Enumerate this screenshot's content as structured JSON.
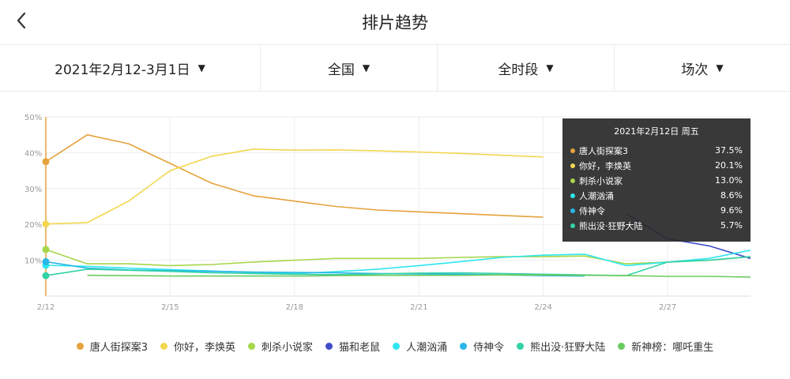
{
  "header": {
    "title": "排片趋势",
    "back_icon": "chevron-left-icon"
  },
  "filters": [
    {
      "label": "2021年2月12-3月1日",
      "icon": "caret-down-icon"
    },
    {
      "label": "全国",
      "icon": "caret-down-icon"
    },
    {
      "label": "全时段",
      "icon": "caret-down-icon"
    },
    {
      "label": "场次",
      "icon": "caret-down-icon"
    }
  ],
  "tooltip": {
    "title": "2021年2月12日 周五",
    "rows": [
      {
        "name": "唐人街探案3",
        "value": "37.5%",
        "color": "#E6A23C"
      },
      {
        "name": "你好，李焕英",
        "value": "20.1%",
        "color": "#F2D750"
      },
      {
        "name": "刺杀小说家",
        "value": "13.0%",
        "color": "#A6D64A"
      },
      {
        "name": "人潮汹涌",
        "value": "8.6%",
        "color": "#2EE6F0"
      },
      {
        "name": "侍神令",
        "value": "9.6%",
        "color": "#29B6E8"
      },
      {
        "name": "熊出没·狂野大陆",
        "value": "5.7%",
        "color": "#33D1A6"
      }
    ]
  },
  "chart_data": {
    "type": "line",
    "x": [
      "2/12",
      "2/13",
      "2/14",
      "2/15",
      "2/16",
      "2/17",
      "2/18",
      "2/19",
      "2/20",
      "2/21",
      "2/22",
      "2/23",
      "2/24",
      "2/25",
      "2/26",
      "2/27",
      "2/28",
      "3/1"
    ],
    "xticks": [
      "2/12",
      "2/15",
      "2/18",
      "2/21",
      "2/24",
      "2/27"
    ],
    "yticks": [
      "10%",
      "20%",
      "30%",
      "40%",
      "50%"
    ],
    "ylim": [
      0,
      50
    ],
    "grid": true,
    "legend_position": "bottom",
    "series": [
      {
        "name": "唐人街探案3",
        "color": "#E6A23C",
        "values": [
          37.5,
          45,
          42.5,
          37,
          31.5,
          28,
          26.5,
          25,
          24,
          23.5,
          23,
          22.5,
          22,
          null,
          null,
          null,
          null,
          null
        ]
      },
      {
        "name": "你好，李焕英",
        "color": "#F2D750",
        "values": [
          20.1,
          20.5,
          26.5,
          35,
          39,
          41,
          40.7,
          40.8,
          40.5,
          40.2,
          39.8,
          39.3,
          38.8,
          null,
          null,
          null,
          null,
          null
        ]
      },
      {
        "name": "刺杀小说家",
        "color": "#A6D64A",
        "values": [
          13,
          9,
          9,
          8.5,
          8.8,
          9.5,
          10,
          10.5,
          10.5,
          10.5,
          10.8,
          11,
          11,
          11.2,
          9,
          9.5,
          10,
          11
        ]
      },
      {
        "name": "猫和老鼠",
        "color": "#3F4CC9",
        "values": [
          null,
          null,
          null,
          null,
          null,
          null,
          null,
          null,
          null,
          null,
          null,
          null,
          null,
          null,
          23,
          16,
          14,
          10.5
        ]
      },
      {
        "name": "人潮汹涌",
        "color": "#2EE6F0",
        "values": [
          8.6,
          8.3,
          7.8,
          7.4,
          7,
          6.6,
          6.3,
          6.8,
          7.5,
          8.5,
          9.6,
          10.8,
          11.4,
          11.7,
          8.5,
          9.5,
          10.5,
          12.8
        ]
      },
      {
        "name": "侍神令",
        "color": "#29B6E8",
        "values": [
          9.6,
          7.8,
          7.3,
          7.1,
          6.9,
          6.7,
          6.6,
          6.5,
          6.3,
          6.2,
          6.1,
          5.9,
          5.7,
          5.6,
          null,
          null,
          null,
          null
        ]
      },
      {
        "name": "熊出没·狂野大陆",
        "color": "#33D1A6",
        "values": [
          5.7,
          7.5,
          7.2,
          6.9,
          6.5,
          6.3,
          6.1,
          6,
          6.2,
          6.4,
          6.5,
          6.3,
          6.1,
          5.9,
          5.7,
          9.5,
          10,
          11
        ]
      },
      {
        "name": "新神榜：哪吒重生",
        "color": "#6CCB5F",
        "values": [
          null,
          5.8,
          5.7,
          5.6,
          5.6,
          5.6,
          5.6,
          5.7,
          5.8,
          5.8,
          5.8,
          5.9,
          5.9,
          5.8,
          5.7,
          5.5,
          5.5,
          5.3
        ]
      }
    ]
  }
}
